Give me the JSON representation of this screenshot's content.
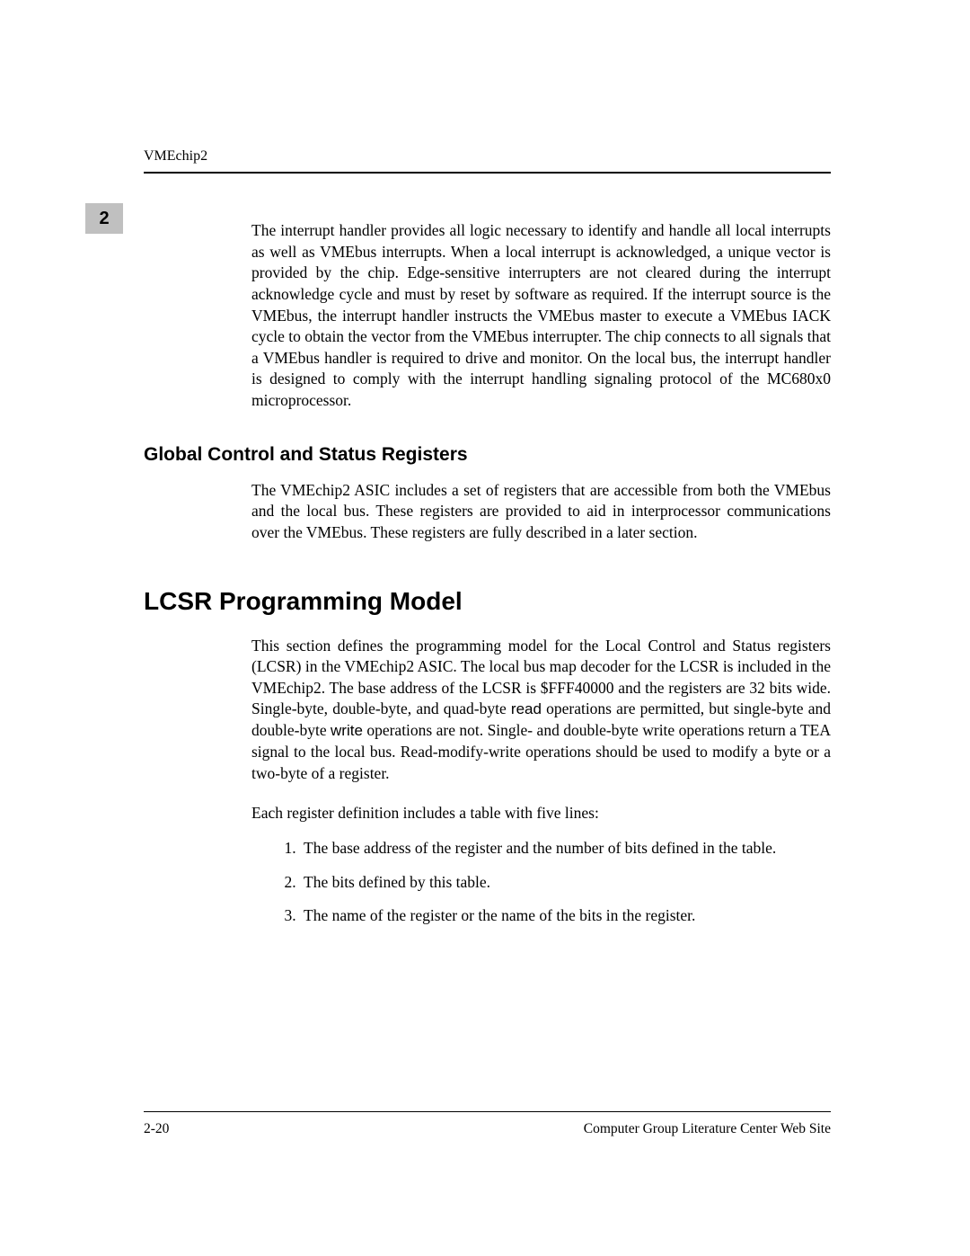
{
  "header": {
    "label": "VMEchip2"
  },
  "chapter": {
    "number": "2"
  },
  "content": {
    "para1": "The interrupt handler provides all logic necessary to identify and handle all local interrupts as well as VMEbus interrupts. When a local interrupt is acknowledged, a unique vector is provided by the chip. Edge-sensitive interrupters are not cleared during the interrupt acknowledge cycle and must by reset by software as required. If the interrupt source is the VMEbus, the interrupt handler instructs the VMEbus master to execute a VMEbus IACK cycle to obtain the vector from the VMEbus interrupter. The chip connects to all signals that a VMEbus handler is required to drive and monitor. On the local bus, the interrupt handler is designed to comply with the interrupt handling signaling protocol of the MC680x0 microprocessor.",
    "sub_heading": "Global Control and Status Registers",
    "para2": "The VMEchip2 ASIC includes a set of registers that are accessible from both the VMEbus and the local bus. These registers are provided to aid in interprocessor communications over the VMEbus. These registers are fully described in a later section.",
    "main_heading": "LCSR Programming Model",
    "para3_before_read": "This section defines the programming model for the Local Control and Status registers (LCSR) in the VMEchip2 ASIC. The local bus map decoder for the LCSR is included in the VMEchip2. The base address of the LCSR is $FFF40000 and the registers are 32 bits wide. Single-byte, double-byte, and quad-byte ",
    "code_read": "read",
    "para3_mid": " operations are permitted, but single-byte and double-byte ",
    "code_write": "write",
    "para3_after_write": " operations are not. Single- and double-byte write operations return a TEA signal to the local bus. Read-modify-write operations should be used to modify a byte or a two-byte of a register.",
    "list_intro": "Each register definition includes a table with five lines:",
    "list_items": {
      "item1": "The base address of the register and the number of bits defined in the table.",
      "item2": "The bits defined by this table.",
      "item3": "The name of the register or the name of the bits in the register."
    }
  },
  "footer": {
    "page_num": "2-20",
    "footer_text": "Computer Group Literature Center Web Site"
  }
}
